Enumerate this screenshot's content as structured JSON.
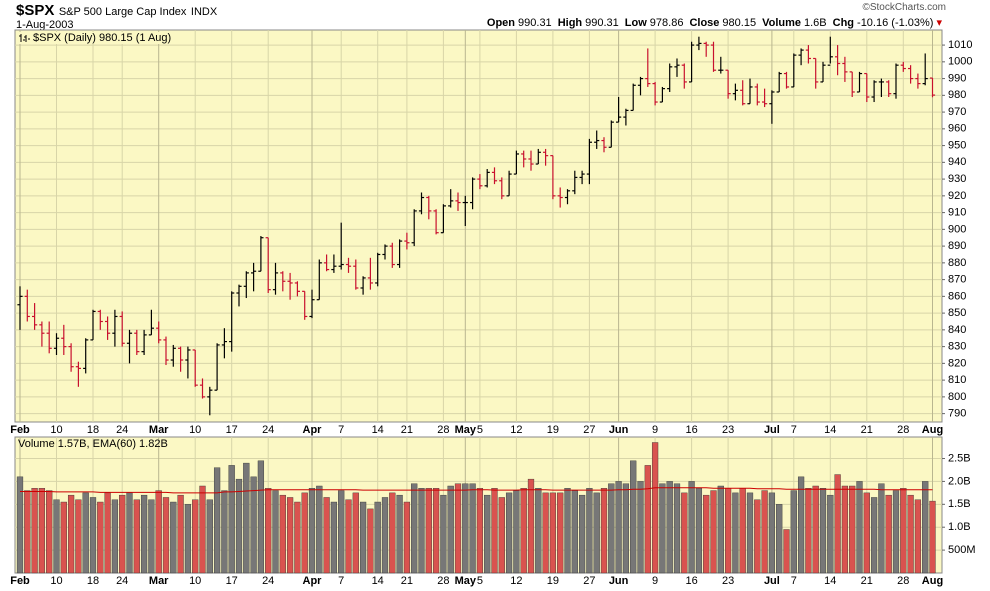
{
  "header": {
    "symbol": "$SPX",
    "name": "S&P 500 Large Cap Index",
    "exchange": "INDX",
    "date": "1-Aug-2003",
    "credit": "©StockCharts.com",
    "stats": [
      {
        "label": "Open",
        "value": "990.31"
      },
      {
        "label": "High",
        "value": "990.31"
      },
      {
        "label": "Low",
        "value": "978.86"
      },
      {
        "label": "Close",
        "value": "980.15"
      },
      {
        "label": "Volume",
        "value": "1.6B"
      },
      {
        "label": "Chg",
        "value": "-10.16 (-1.03%)"
      }
    ]
  },
  "chart_data": [
    {
      "type": "ohlc",
      "legend": "$SPX (Daily) 980.15 (1 Aug)",
      "categories": [
        "Feb",
        null,
        null,
        null,
        null,
        "10",
        null,
        null,
        null,
        null,
        "18",
        null,
        null,
        null,
        "24",
        null,
        null,
        null,
        null,
        "Mar",
        null,
        null,
        null,
        null,
        "10",
        null,
        null,
        null,
        null,
        "17",
        null,
        null,
        null,
        null,
        "24",
        null,
        null,
        null,
        null,
        null,
        "Apr",
        null,
        null,
        null,
        "7",
        null,
        null,
        null,
        null,
        "14",
        null,
        null,
        null,
        "21",
        null,
        null,
        null,
        null,
        "28",
        null,
        null,
        "May",
        null,
        "5",
        null,
        null,
        null,
        null,
        "12",
        null,
        null,
        null,
        null,
        "19",
        null,
        null,
        null,
        null,
        "27",
        null,
        null,
        null,
        "Jun",
        null,
        null,
        null,
        null,
        "9",
        null,
        null,
        null,
        null,
        "16",
        null,
        null,
        null,
        null,
        "23",
        null,
        null,
        null,
        null,
        null,
        "Jul",
        null,
        null,
        "7",
        null,
        null,
        null,
        null,
        "14",
        null,
        null,
        null,
        null,
        "21",
        null,
        null,
        null,
        null,
        "28",
        null,
        null,
        null,
        "Aug"
      ],
      "open": [
        855,
        860,
        848,
        843,
        838,
        829,
        835,
        830,
        818,
        817,
        834,
        851,
        845,
        838,
        848,
        832,
        838,
        827,
        837,
        841,
        834,
        822,
        829,
        822,
        828,
        807,
        800,
        804,
        831,
        833,
        862,
        866,
        874,
        875,
        895,
        864,
        874,
        869,
        868,
        863,
        848,
        858,
        880,
        876,
        878,
        879,
        878,
        865,
        871,
        868,
        885,
        890,
        879,
        893,
        892,
        911,
        919,
        911,
        898,
        914,
        917,
        916,
        916,
        930,
        926,
        934,
        929,
        920,
        933,
        945,
        942,
        939,
        946,
        944,
        920,
        919,
        923,
        931,
        933,
        952,
        953,
        949,
        964,
        967,
        971,
        986,
        990,
        987,
        976,
        984,
        997,
        998,
        988,
        1010,
        1011,
        1010,
        995,
        995,
        981,
        983,
        975,
        985,
        976,
        975,
        982,
        993,
        985,
        1004,
        1007,
        1002,
        988,
        998,
        1003,
        999,
        994,
        982,
        993,
        979,
        988,
        988,
        981,
        998,
        996,
        990,
        987,
        990.31
      ],
      "high": [
        866,
        864,
        856,
        845,
        845,
        838,
        843,
        832,
        821,
        835,
        852,
        852,
        848,
        852,
        851,
        840,
        840,
        840,
        852,
        845,
        836,
        831,
        830,
        830,
        828,
        811,
        806,
        832,
        841,
        863,
        867,
        875,
        880,
        896,
        895,
        880,
        875,
        874,
        869,
        863,
        864,
        882,
        885,
        885,
        904,
        883,
        882,
        872,
        883,
        886,
        891,
        892,
        894,
        898,
        912,
        922,
        920,
        912,
        915,
        924,
        922,
        920,
        931,
        933,
        936,
        937,
        931,
        935,
        947,
        947,
        947,
        948,
        948,
        944,
        925,
        924,
        935,
        935,
        954,
        959,
        955,
        965,
        979,
        972,
        987,
        991,
        1008,
        988,
        985,
        999,
        1002,
        999,
        1012,
        1015,
        1012,
        1012,
        1003,
        995,
        987,
        989,
        990,
        987,
        984,
        983,
        994,
        994,
        1005,
        1008,
        1010,
        1002,
        1000,
        1015,
        1010,
        1003,
        994,
        994,
        993,
        989,
        990,
        989,
        999,
        1000,
        998,
        993,
        1005,
        990.31
      ],
      "low": [
        840,
        845,
        840,
        830,
        826,
        825,
        825,
        815,
        806,
        814,
        834,
        840,
        834,
        830,
        830,
        820,
        825,
        825,
        837,
        832,
        819,
        818,
        815,
        811,
        806,
        799,
        789,
        804,
        823,
        827,
        854,
        859,
        863,
        875,
        862,
        861,
        863,
        858,
        860,
        846,
        847,
        858,
        875,
        874,
        876,
        874,
        864,
        861,
        864,
        866,
        882,
        877,
        877,
        888,
        890,
        909,
        906,
        897,
        898,
        913,
        911,
        902,
        912,
        924,
        925,
        927,
        918,
        920,
        933,
        937,
        935,
        939,
        938,
        918,
        913,
        915,
        921,
        927,
        927,
        948,
        946,
        949,
        964,
        962,
        971,
        980,
        985,
        974,
        976,
        982,
        991,
        984,
        988,
        1007,
        1003,
        994,
        993,
        978,
        977,
        974,
        975,
        974,
        973,
        963,
        982,
        984,
        985,
        998,
        999,
        984,
        988,
        999,
        992,
        988,
        979,
        982,
        976,
        976,
        979,
        979,
        978,
        994,
        987,
        984,
        986,
        978.86
      ],
      "close": [
        860,
        848,
        843,
        838,
        829,
        835,
        830,
        818,
        817,
        834,
        851,
        845,
        838,
        848,
        832,
        838,
        827,
        837,
        841,
        834,
        822,
        829,
        822,
        828,
        807,
        800,
        804,
        831,
        833,
        862,
        866,
        874,
        875,
        895,
        864,
        874,
        869,
        868,
        863,
        848,
        858,
        880,
        876,
        878,
        879,
        878,
        865,
        871,
        868,
        885,
        890,
        879,
        893,
        892,
        911,
        919,
        911,
        898,
        914,
        917,
        916,
        916,
        930,
        926,
        934,
        929,
        920,
        933,
        945,
        942,
        939,
        946,
        944,
        920,
        919,
        923,
        931,
        933,
        952,
        953,
        949,
        964,
        967,
        971,
        986,
        990,
        987,
        976,
        984,
        997,
        998,
        988,
        1010,
        1011,
        1010,
        995,
        995,
        981,
        983,
        975,
        985,
        976,
        975,
        982,
        993,
        985,
        1004,
        1007,
        1002,
        988,
        998,
        1003,
        999,
        994,
        982,
        993,
        979,
        988,
        988,
        981,
        998,
        996,
        990,
        987,
        990,
        980.15
      ],
      "up_color": "#000000",
      "down_color": "#c8102e",
      "ylim": [
        785,
        1019
      ],
      "yticks": [
        790,
        800,
        810,
        820,
        830,
        840,
        850,
        860,
        870,
        880,
        890,
        900,
        910,
        920,
        930,
        940,
        950,
        960,
        970,
        980,
        990,
        1000,
        1010
      ],
      "grid": true
    },
    {
      "type": "volume",
      "legend": "Volume 1.57B, EMA(60) 1.82B",
      "values": [
        2.1,
        1.8,
        1.85,
        1.85,
        1.8,
        1.6,
        1.55,
        1.7,
        1.6,
        1.75,
        1.65,
        1.55,
        1.75,
        1.6,
        1.7,
        1.75,
        1.6,
        1.7,
        1.6,
        1.8,
        1.65,
        1.55,
        1.7,
        1.5,
        1.6,
        1.9,
        1.6,
        2.3,
        1.8,
        2.35,
        2.05,
        2.4,
        2.1,
        2.45,
        1.85,
        1.8,
        1.7,
        1.65,
        1.55,
        1.75,
        1.85,
        1.9,
        1.65,
        1.55,
        1.8,
        1.6,
        1.75,
        1.55,
        1.4,
        1.55,
        1.65,
        1.75,
        1.7,
        1.55,
        1.95,
        1.85,
        1.85,
        1.85,
        1.7,
        1.9,
        1.95,
        1.95,
        1.95,
        1.85,
        1.7,
        1.85,
        1.65,
        1.75,
        1.8,
        1.85,
        2.05,
        1.85,
        1.75,
        1.75,
        1.75,
        1.85,
        1.8,
        1.7,
        1.85,
        1.75,
        1.85,
        1.95,
        2.0,
        1.95,
        2.45,
        2.0,
        2.35,
        2.85,
        1.95,
        2.0,
        1.95,
        1.75,
        2.0,
        1.85,
        1.7,
        1.8,
        1.9,
        1.85,
        1.75,
        1.85,
        1.75,
        1.6,
        1.8,
        1.75,
        1.5,
        0.95,
        1.8,
        2.1,
        1.85,
        1.9,
        1.85,
        1.7,
        2.15,
        1.9,
        1.9,
        2.0,
        1.75,
        1.65,
        1.95,
        1.7,
        1.8,
        1.85,
        1.7,
        1.6,
        2.0,
        1.57
      ],
      "ema": [
        1.78,
        1.78,
        1.78,
        1.78,
        1.78,
        1.77,
        1.77,
        1.77,
        1.77,
        1.77,
        1.77,
        1.76,
        1.76,
        1.76,
        1.76,
        1.76,
        1.76,
        1.76,
        1.76,
        1.76,
        1.76,
        1.75,
        1.75,
        1.75,
        1.75,
        1.75,
        1.75,
        1.75,
        1.77,
        1.77,
        1.78,
        1.79,
        1.8,
        1.81,
        1.82,
        1.82,
        1.82,
        1.82,
        1.82,
        1.82,
        1.82,
        1.82,
        1.82,
        1.82,
        1.82,
        1.82,
        1.82,
        1.81,
        1.81,
        1.81,
        1.81,
        1.81,
        1.81,
        1.81,
        1.81,
        1.81,
        1.81,
        1.81,
        1.81,
        1.81,
        1.81,
        1.81,
        1.82,
        1.82,
        1.82,
        1.81,
        1.81,
        1.81,
        1.81,
        1.82,
        1.82,
        1.82,
        1.82,
        1.81,
        1.81,
        1.81,
        1.81,
        1.81,
        1.81,
        1.81,
        1.81,
        1.81,
        1.82,
        1.82,
        1.83,
        1.83,
        1.84,
        1.86,
        1.86,
        1.86,
        1.86,
        1.86,
        1.86,
        1.86,
        1.86,
        1.85,
        1.85,
        1.85,
        1.85,
        1.85,
        1.85,
        1.84,
        1.84,
        1.84,
        1.84,
        1.83,
        1.83,
        1.83,
        1.83,
        1.83,
        1.83,
        1.83,
        1.83,
        1.83,
        1.83,
        1.83,
        1.83,
        1.83,
        1.82,
        1.82,
        1.82,
        1.82,
        1.82,
        1.82,
        1.82,
        1.82
      ],
      "up_color": "#777777",
      "down_color": "#d9534f",
      "ema_color": "#cc0000",
      "ylim": [
        0,
        2.97
      ],
      "yticks": [
        {
          "value": 0.5,
          "label": "500M"
        },
        {
          "value": 1,
          "label": "1.0B"
        },
        {
          "value": 1.5,
          "label": "1.5B"
        },
        {
          "value": 2,
          "label": "2.0B"
        },
        {
          "value": 2.5,
          "label": "2.5B"
        }
      ],
      "grid": true
    }
  ]
}
